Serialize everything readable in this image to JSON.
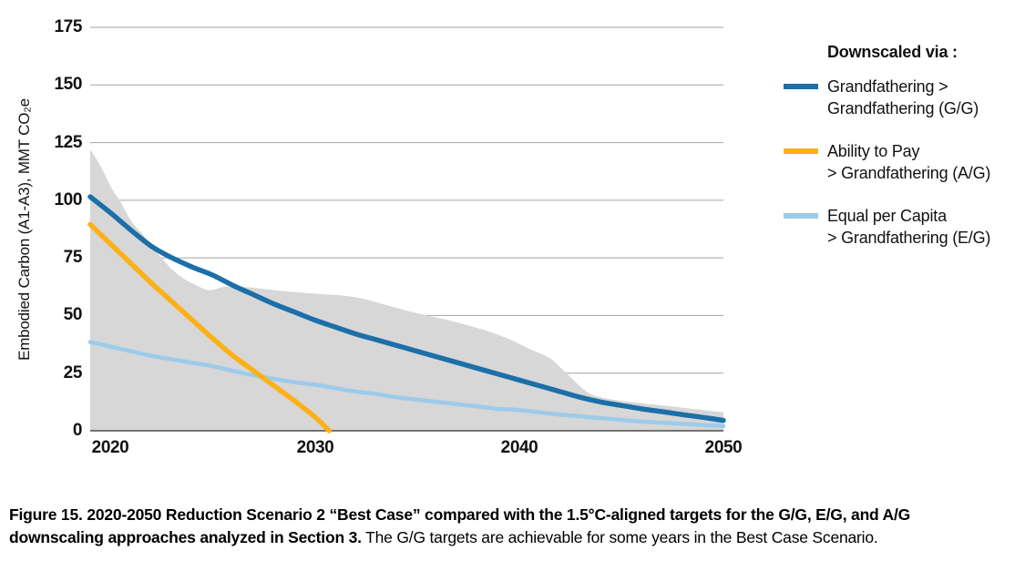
{
  "figure": {
    "caption_line1_bold": "Figure 15. 2020-2050 Reduction Scenario 2 “Best Case” compared with the 1.5°C-aligned targets for the G/G, E/G, and A/G",
    "caption_line2_bold": "downscaling approaches analyzed in Section 3.",
    "caption_line2_regular": " The G/G targets are achievable for some years in the Best Case Scenario."
  },
  "legend": {
    "title": "Downscaled via :",
    "items": [
      {
        "line1": "Grandfathering >",
        "line2": "Grandfathering (G/G)",
        "color": "#1C6FA8"
      },
      {
        "line1": "Ability to Pay",
        "line2": " > Grandfathering (A/G)",
        "color": "#FBB117"
      },
      {
        "line1": "Equal per Capita",
        "line2": " > Grandfathering (E/G)",
        "color": "#9DCBEA"
      }
    ]
  },
  "chart_data": {
    "type": "line",
    "title": "",
    "xlabel": "",
    "ylabel": "Embodied Carbon (A1-A3), MMT CO₂e",
    "xlim": [
      2019,
      2050
    ],
    "ylim": [
      0,
      175
    ],
    "x_ticks": [
      2020,
      2030,
      2040,
      2050
    ],
    "y_ticks": [
      0,
      25,
      50,
      75,
      100,
      125,
      150,
      175
    ],
    "grid": "horizontal",
    "legend_position": "right",
    "colors": {
      "gridline": "#A3A3A3",
      "axis": "#4D4D4D",
      "band": "#D7D7D7",
      "gg": "#1C6FA8",
      "ag": "#FBB117",
      "eg": "#9DCBEA"
    },
    "band": {
      "description": "gray shaded emissions range, filled to zero",
      "points": [
        [
          2019,
          122
        ],
        [
          2019.5,
          115
        ],
        [
          2020,
          106
        ],
        [
          2020.5,
          99
        ],
        [
          2021,
          91
        ],
        [
          2021.5,
          86
        ],
        [
          2022,
          80
        ],
        [
          2022.5,
          75
        ],
        [
          2023,
          70
        ],
        [
          2023.5,
          66.5
        ],
        [
          2024,
          64
        ],
        [
          2024.8,
          61
        ],
        [
          2025.6,
          62.5
        ],
        [
          2026.4,
          62.5
        ],
        [
          2027.5,
          61.5
        ],
        [
          2028.5,
          60.5
        ],
        [
          2030,
          59.5
        ],
        [
          2031.5,
          58.5
        ],
        [
          2032.5,
          57
        ],
        [
          2033.5,
          54.5
        ],
        [
          2035,
          51
        ],
        [
          2036.5,
          48
        ],
        [
          2038,
          44.5
        ],
        [
          2039,
          41.5
        ],
        [
          2039.7,
          39
        ],
        [
          2040.5,
          35.5
        ],
        [
          2041.5,
          31.5
        ],
        [
          2042.3,
          25
        ],
        [
          2043.3,
          17
        ],
        [
          2044,
          14.5
        ],
        [
          2045,
          13
        ],
        [
          2046.5,
          11.5
        ],
        [
          2048,
          10
        ],
        [
          2049,
          9
        ],
        [
          2050,
          8
        ]
      ]
    },
    "series": [
      {
        "id": "gg",
        "name": "Grandfathering > Grandfathering (G/G)",
        "color": "#1C6FA8",
        "points": [
          [
            2019,
            101.5
          ],
          [
            2020,
            94.5
          ],
          [
            2021,
            87
          ],
          [
            2022,
            80
          ],
          [
            2023,
            75
          ],
          [
            2024,
            71
          ],
          [
            2025,
            67.5
          ],
          [
            2026,
            63
          ],
          [
            2027,
            59
          ],
          [
            2028,
            55
          ],
          [
            2029,
            51.5
          ],
          [
            2030,
            48
          ],
          [
            2031,
            45
          ],
          [
            2032,
            42
          ],
          [
            2033,
            39.5
          ],
          [
            2034,
            37
          ],
          [
            2035,
            34.5
          ],
          [
            2036,
            32
          ],
          [
            2037,
            29.5
          ],
          [
            2038,
            27
          ],
          [
            2039,
            24.5
          ],
          [
            2040,
            22
          ],
          [
            2041,
            19.5
          ],
          [
            2042,
            17
          ],
          [
            2043,
            14.5
          ],
          [
            2044,
            12.5
          ],
          [
            2045,
            11
          ],
          [
            2046,
            9.5
          ],
          [
            2047,
            8.3
          ],
          [
            2048,
            7
          ],
          [
            2049,
            5.8
          ],
          [
            2050,
            4.5
          ]
        ]
      },
      {
        "id": "ag",
        "name": "Ability to Pay > Grandfathering (A/G)",
        "color": "#FBB117",
        "points": [
          [
            2019,
            89.5
          ],
          [
            2020,
            81
          ],
          [
            2021,
            72.5
          ],
          [
            2022,
            64
          ],
          [
            2023,
            56
          ],
          [
            2024,
            48
          ],
          [
            2025,
            40
          ],
          [
            2026,
            32.5
          ],
          [
            2027,
            26
          ],
          [
            2028,
            19.5
          ],
          [
            2029,
            13
          ],
          [
            2030,
            6
          ],
          [
            2030.7,
            0
          ]
        ]
      },
      {
        "id": "eg",
        "name": "Equal per Capita > Grandfathering (E/G)",
        "color": "#9DCBEA",
        "points": [
          [
            2019,
            38.5
          ],
          [
            2020,
            36.5
          ],
          [
            2021,
            34.5
          ],
          [
            2022,
            32.5
          ],
          [
            2023,
            31
          ],
          [
            2024,
            29.5
          ],
          [
            2025,
            28
          ],
          [
            2026,
            26
          ],
          [
            2027,
            24
          ],
          [
            2028,
            22.5
          ],
          [
            2029,
            21
          ],
          [
            2030,
            20
          ],
          [
            2031,
            18.5
          ],
          [
            2032,
            17
          ],
          [
            2033,
            16
          ],
          [
            2034,
            14.5
          ],
          [
            2035,
            13.5
          ],
          [
            2036,
            12.5
          ],
          [
            2037,
            11.5
          ],
          [
            2038,
            10.5
          ],
          [
            2039,
            9.5
          ],
          [
            2040,
            9
          ],
          [
            2041,
            8
          ],
          [
            2042,
            7
          ],
          [
            2043,
            6.3
          ],
          [
            2044,
            5.5
          ],
          [
            2045,
            4.7
          ],
          [
            2046,
            4
          ],
          [
            2047,
            3.5
          ],
          [
            2048,
            3
          ],
          [
            2049,
            2.5
          ],
          [
            2050,
            2
          ]
        ]
      }
    ]
  }
}
